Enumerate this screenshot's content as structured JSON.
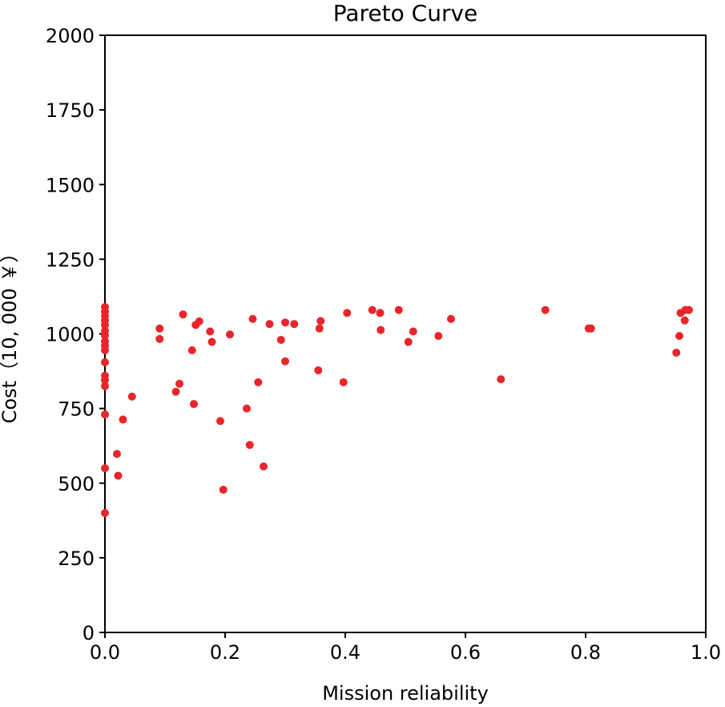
{
  "chart_data": {
    "type": "scatter",
    "title": "Pareto Curve",
    "xlabel": "Mission reliability",
    "ylabel": "Cost（10, 000 ￥）",
    "xlim": [
      0.0,
      1.0
    ],
    "ylim": [
      0,
      2000
    ],
    "x_ticks": [
      "0.0",
      "0.2",
      "0.4",
      "0.6",
      "0.8",
      "1.0"
    ],
    "y_ticks": [
      "0",
      "250",
      "500",
      "750",
      "1000",
      "1250",
      "1500",
      "1750",
      "2000"
    ],
    "grid": false,
    "marker_color": "#e8262a",
    "series": [
      {
        "points": [
          [
            0.0,
            1090
          ],
          [
            0.0,
            1075
          ],
          [
            0.0,
            1060
          ],
          [
            0.0,
            1045
          ],
          [
            0.0,
            1030
          ],
          [
            0.0,
            1010
          ],
          [
            0.0,
            995
          ],
          [
            0.0,
            975
          ],
          [
            0.0,
            960
          ],
          [
            0.0,
            945
          ],
          [
            0.0,
            905
          ],
          [
            0.0,
            860
          ],
          [
            0.0,
            845
          ],
          [
            0.0,
            825
          ],
          [
            0.0,
            730
          ],
          [
            0.0,
            550
          ],
          [
            0.0,
            400
          ],
          [
            0.02,
            598
          ],
          [
            0.022,
            525
          ],
          [
            0.03,
            713
          ],
          [
            0.045,
            790
          ],
          [
            0.091,
            1018
          ],
          [
            0.091,
            983
          ],
          [
            0.118,
            806
          ],
          [
            0.124,
            833
          ],
          [
            0.13,
            1065
          ],
          [
            0.145,
            945
          ],
          [
            0.148,
            765
          ],
          [
            0.151,
            1030
          ],
          [
            0.157,
            1042
          ],
          [
            0.175,
            1008
          ],
          [
            0.178,
            973
          ],
          [
            0.192,
            708
          ],
          [
            0.197,
            478
          ],
          [
            0.208,
            998
          ],
          [
            0.236,
            750
          ],
          [
            0.241,
            628
          ],
          [
            0.246,
            1050
          ],
          [
            0.255,
            838
          ],
          [
            0.264,
            556
          ],
          [
            0.274,
            1033
          ],
          [
            0.293,
            980
          ],
          [
            0.3,
            1038
          ],
          [
            0.3,
            908
          ],
          [
            0.315,
            1033
          ],
          [
            0.355,
            878
          ],
          [
            0.357,
            1018
          ],
          [
            0.359,
            1043
          ],
          [
            0.397,
            838
          ],
          [
            0.403,
            1070
          ],
          [
            0.445,
            1080
          ],
          [
            0.458,
            1070
          ],
          [
            0.459,
            1013
          ],
          [
            0.489,
            1080
          ],
          [
            0.505,
            973
          ],
          [
            0.513,
            1008
          ],
          [
            0.555,
            993
          ],
          [
            0.576,
            1050
          ],
          [
            0.659,
            848
          ],
          [
            0.733,
            1080
          ],
          [
            0.805,
            1018
          ],
          [
            0.809,
            1018
          ],
          [
            0.951,
            937
          ],
          [
            0.956,
            993
          ],
          [
            0.958,
            1070
          ],
          [
            0.965,
            1045
          ],
          [
            0.966,
            1080
          ],
          [
            0.972,
            1080
          ]
        ]
      }
    ]
  }
}
